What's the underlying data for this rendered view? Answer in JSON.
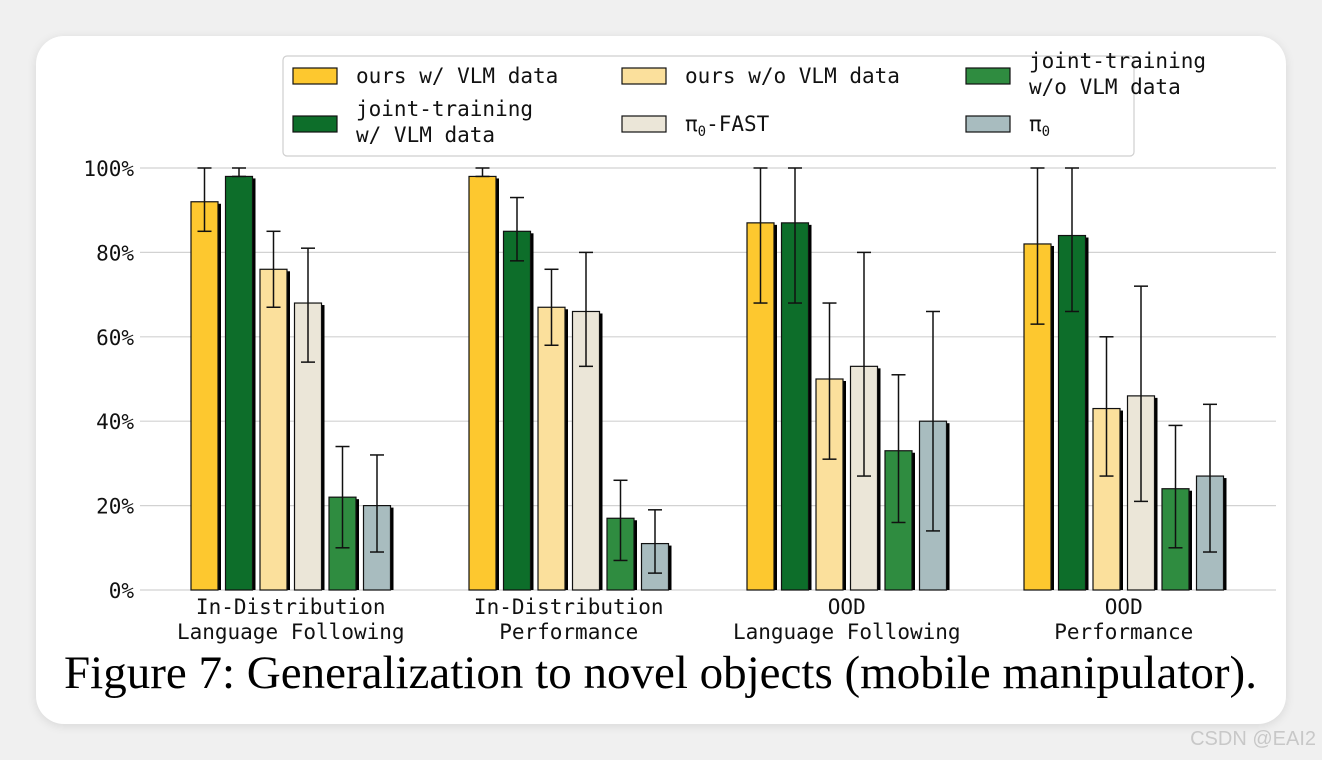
{
  "chart_data": {
    "type": "bar",
    "categories": [
      [
        "In-Distribution",
        "Language Following"
      ],
      [
        "In-Distribution",
        "Performance"
      ],
      [
        "OOD",
        "Language Following"
      ],
      [
        "OOD",
        "Performance"
      ]
    ],
    "yticks": [
      "0%",
      "20%",
      "40%",
      "60%",
      "80%",
      "100%"
    ],
    "ylim": [
      0,
      100
    ],
    "grid": true,
    "legend_position": "top",
    "series": [
      {
        "name": "ours w/ VLM data",
        "legend_lines": [
          "ours w/ VLM data"
        ],
        "color": "#fdc82f",
        "values": [
          92,
          98,
          87,
          82
        ],
        "err_low": [
          85,
          98,
          68,
          63
        ],
        "err_high": [
          100,
          100,
          100,
          100
        ]
      },
      {
        "name": "joint-training w/ VLM data",
        "legend_lines": [
          "joint-training",
          "w/ VLM data"
        ],
        "color": "#0d6e2a",
        "values": [
          98,
          85,
          87,
          84
        ],
        "err_low": [
          98,
          78,
          68,
          66
        ],
        "err_high": [
          100,
          93,
          100,
          100
        ]
      },
      {
        "name": "ours w/o VLM data",
        "legend_lines": [
          "ours w/o VLM data"
        ],
        "color": "#fbe09c",
        "values": [
          76,
          67,
          50,
          43
        ],
        "err_low": [
          67,
          58,
          31,
          27
        ],
        "err_high": [
          85,
          76,
          68,
          60
        ]
      },
      {
        "name": "π0-FAST",
        "legend_lines": [
          "π0-FAST"
        ],
        "legend_main": "π",
        "legend_sub": "0",
        "legend_suffix": "-FAST",
        "color": "#ebe6d8",
        "values": [
          68,
          66,
          53,
          46
        ],
        "err_low": [
          54,
          53,
          27,
          21
        ],
        "err_high": [
          81,
          80,
          80,
          72
        ]
      },
      {
        "name": "joint-training w/o VLM data",
        "legend_lines": [
          "joint-training",
          "w/o VLM data"
        ],
        "color": "#2f8c40",
        "values": [
          22,
          17,
          33,
          24
        ],
        "err_low": [
          10,
          7,
          16,
          10
        ],
        "err_high": [
          34,
          26,
          51,
          39
        ]
      },
      {
        "name": "π0",
        "legend_lines": [
          "π0"
        ],
        "legend_main": "π",
        "legend_sub": "0",
        "legend_suffix": "",
        "color": "#a8bcbf",
        "values": [
          20,
          11,
          40,
          27
        ],
        "err_low": [
          9,
          4,
          14,
          9
        ],
        "err_high": [
          32,
          19,
          66,
          44
        ]
      }
    ]
  },
  "caption": "Figure 7: Generalization to novel objects (mobile manipulator).",
  "watermark": "CSDN @EAI2"
}
